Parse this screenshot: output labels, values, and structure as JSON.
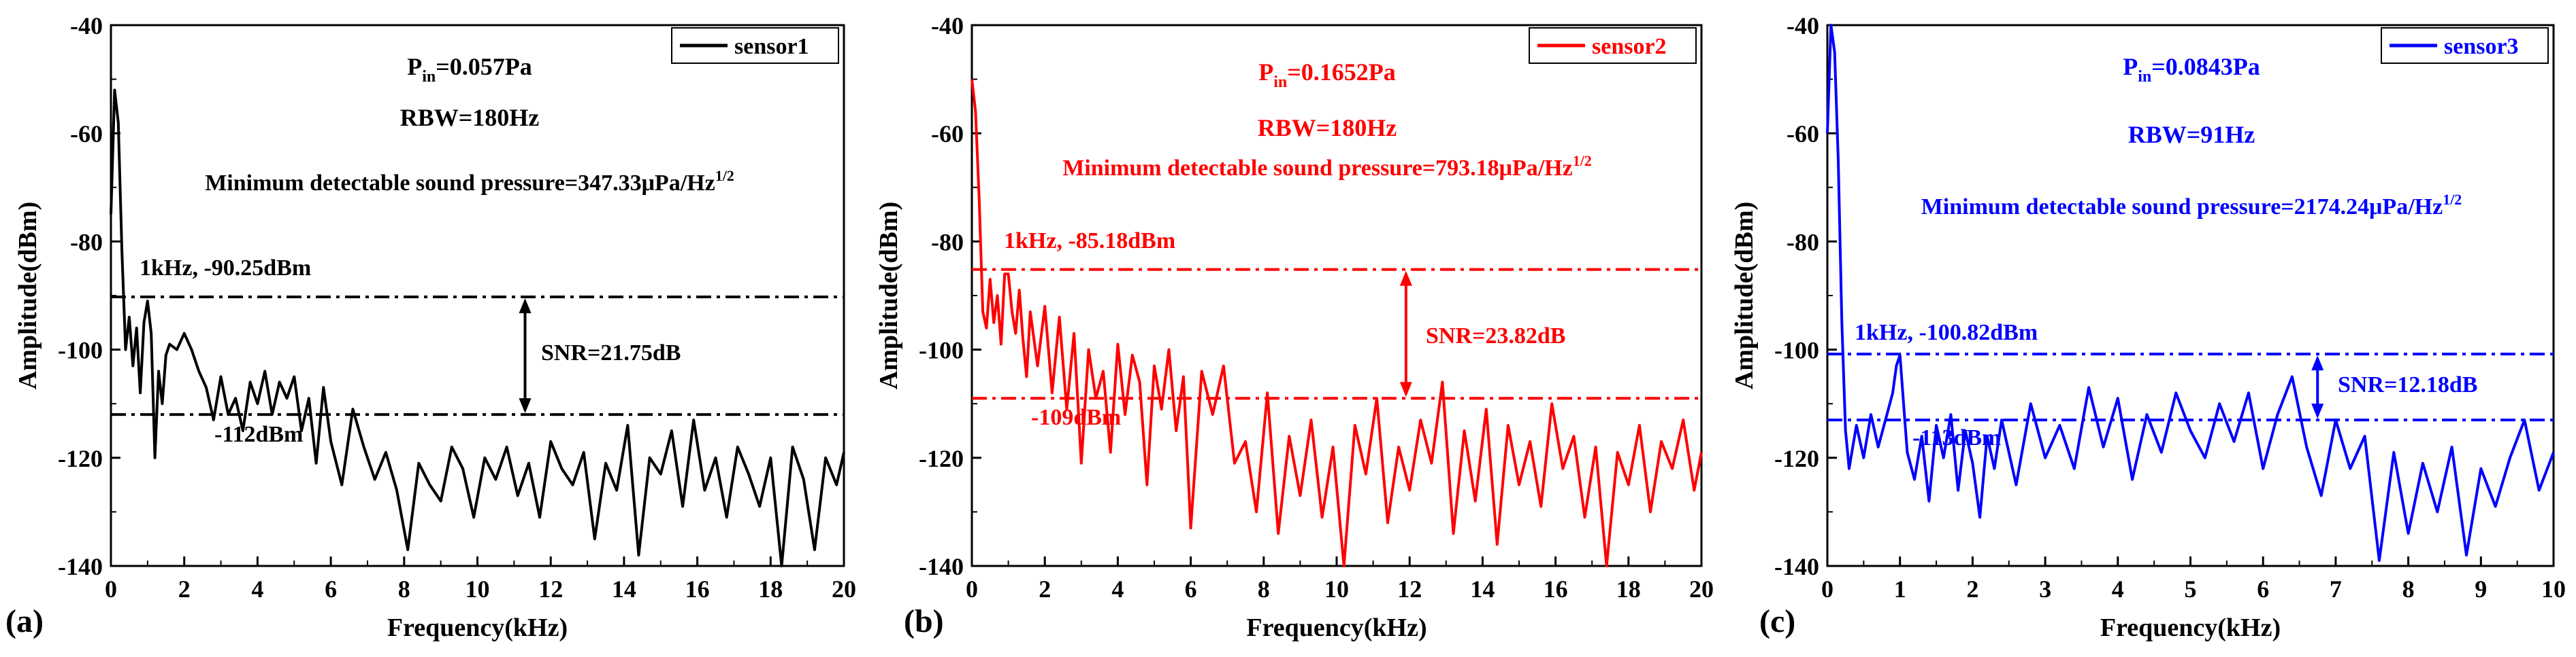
{
  "chart_data": [
    {
      "type": "line",
      "panel_label": "(a)",
      "xlabel": "Frequency(kHz)",
      "ylabel": "Amplitude(dBm)",
      "xlim": [
        0,
        20
      ],
      "ylim": [
        -140,
        -40
      ],
      "xticks": [
        "0",
        "2",
        "4",
        "6",
        "8",
        "10",
        "12",
        "14",
        "16",
        "18",
        "20"
      ],
      "yticks": [
        "-40",
        "-60",
        "-80",
        "-100",
        "-120",
        "-140"
      ],
      "color": "#000000",
      "legend": "sensor1",
      "annot_pin_main": "P",
      "annot_pin_sub": "in",
      "annot_pin_value": "=0.057Pa",
      "annot_rbw": "RBW=180Hz",
      "annot_mdsp_main": "Minimum detectable sound pressure=347.33μPa/Hz",
      "annot_mdsp_sup": "1/2",
      "signal_label": "1kHz, -90.25dBm",
      "noise_label": "-112dBm",
      "snr_label": "SNR=21.75dB",
      "signal_level": -90.25,
      "noise_level": -112,
      "snr_arrow_x": 11.3,
      "series": [
        {
          "name": "sensor1",
          "x": [
            0,
            0.1,
            0.2,
            0.3,
            0.4,
            0.5,
            0.6,
            0.7,
            0.8,
            0.9,
            1.0,
            1.1,
            1.2,
            1.3,
            1.4,
            1.5,
            1.6,
            1.8,
            2.0,
            2.2,
            2.4,
            2.6,
            2.8,
            3.0,
            3.2,
            3.4,
            3.6,
            3.8,
            4.0,
            4.2,
            4.4,
            4.6,
            4.8,
            5.0,
            5.2,
            5.4,
            5.6,
            5.8,
            6.0,
            6.3,
            6.6,
            6.9,
            7.2,
            7.5,
            7.8,
            8.1,
            8.4,
            8.7,
            9.0,
            9.3,
            9.6,
            9.9,
            10.2,
            10.5,
            10.8,
            11.1,
            11.4,
            11.7,
            12.0,
            12.3,
            12.6,
            12.9,
            13.2,
            13.5,
            13.8,
            14.1,
            14.4,
            14.7,
            15.0,
            15.3,
            15.6,
            15.9,
            16.2,
            16.5,
            16.8,
            17.1,
            17.4,
            17.7,
            18.0,
            18.3,
            18.6,
            18.9,
            19.2,
            19.5,
            19.8,
            20.0
          ],
          "y": [
            -75,
            -52,
            -58,
            -82,
            -100,
            -94,
            -103,
            -96,
            -108,
            -95,
            -91,
            -97,
            -120,
            -104,
            -110,
            -101,
            -99,
            -100,
            -97,
            -100,
            -104,
            -107,
            -113,
            -105,
            -112,
            -109,
            -115,
            -106,
            -110,
            -104,
            -112,
            -106,
            -109,
            -105,
            -115,
            -109,
            -121,
            -107,
            -117,
            -125,
            -111,
            -118,
            -124,
            -119,
            -126,
            -137,
            -121,
            -125,
            -128,
            -118,
            -122,
            -131,
            -120,
            -124,
            -118,
            -127,
            -121,
            -131,
            -117,
            -122,
            -125,
            -119,
            -135,
            -121,
            -126,
            -114,
            -138,
            -120,
            -123,
            -115,
            -129,
            -113,
            -126,
            -120,
            -131,
            -118,
            -123,
            -129,
            -120,
            -142,
            -118,
            -124,
            -137,
            -120,
            -125,
            -119
          ]
        }
      ]
    },
    {
      "type": "line",
      "panel_label": "(b)",
      "xlabel": "Frequency(kHz)",
      "ylabel": "Amplitude(dBm)",
      "xlim": [
        0,
        20
      ],
      "ylim": [
        -140,
        -40
      ],
      "xticks": [
        "0",
        "2",
        "4",
        "6",
        "8",
        "10",
        "12",
        "14",
        "16",
        "18",
        "20"
      ],
      "yticks": [
        "-40",
        "-60",
        "-80",
        "-100",
        "-120",
        "-140"
      ],
      "color": "#ff0000",
      "legend": "sensor2",
      "annot_pin_main": "P",
      "annot_pin_sub": "in",
      "annot_pin_value": "=0.1652Pa",
      "annot_rbw": "RBW=180Hz",
      "annot_mdsp_main": "Minimum detectable sound pressure=793.18μPa/Hz",
      "annot_mdsp_sup": "1/2",
      "signal_label": "1kHz, -85.18dBm",
      "noise_label": "-109dBm",
      "snr_label": "SNR=23.82dB",
      "signal_level": -85.18,
      "noise_level": -109,
      "snr_arrow_x": 11.9,
      "series": [
        {
          "name": "sensor2",
          "x": [
            0,
            0.1,
            0.2,
            0.3,
            0.4,
            0.5,
            0.6,
            0.7,
            0.8,
            0.9,
            1.0,
            1.1,
            1.2,
            1.3,
            1.4,
            1.5,
            1.6,
            1.8,
            2.0,
            2.2,
            2.4,
            2.6,
            2.8,
            3.0,
            3.2,
            3.4,
            3.6,
            3.8,
            4.0,
            4.2,
            4.4,
            4.6,
            4.8,
            5.0,
            5.2,
            5.4,
            5.6,
            5.8,
            6.0,
            6.3,
            6.6,
            6.9,
            7.2,
            7.5,
            7.8,
            8.1,
            8.4,
            8.7,
            9.0,
            9.3,
            9.6,
            9.9,
            10.2,
            10.5,
            10.8,
            11.1,
            11.4,
            11.7,
            12.0,
            12.3,
            12.6,
            12.9,
            13.2,
            13.5,
            13.8,
            14.1,
            14.4,
            14.7,
            15.0,
            15.3,
            15.6,
            15.9,
            16.2,
            16.5,
            16.8,
            17.1,
            17.4,
            17.7,
            18.0,
            18.3,
            18.6,
            18.9,
            19.2,
            19.5,
            19.8,
            20.0
          ],
          "y": [
            -50,
            -56,
            -72,
            -93,
            -96,
            -87,
            -95,
            -90,
            -99,
            -86,
            -86,
            -93,
            -97,
            -89,
            -98,
            -105,
            -93,
            -103,
            -92,
            -108,
            -94,
            -111,
            -97,
            -121,
            -100,
            -109,
            -104,
            -119,
            -99,
            -112,
            -101,
            -106,
            -125,
            -103,
            -111,
            -100,
            -115,
            -105,
            -133,
            -104,
            -112,
            -103,
            -121,
            -117,
            -130,
            -108,
            -134,
            -116,
            -127,
            -113,
            -131,
            -118,
            -140,
            -114,
            -123,
            -109,
            -132,
            -118,
            -126,
            -113,
            -121,
            -106,
            -134,
            -115,
            -128,
            -111,
            -136,
            -114,
            -125,
            -117,
            -129,
            -110,
            -122,
            -116,
            -131,
            -118,
            -140,
            -119,
            -125,
            -114,
            -130,
            -117,
            -122,
            -113,
            -126,
            -119
          ]
        }
      ]
    },
    {
      "type": "line",
      "panel_label": "(c)",
      "xlabel": "Frequency(kHz)",
      "ylabel": "Amplitude(dBm)",
      "xlim": [
        0,
        10
      ],
      "ylim": [
        -140,
        -40
      ],
      "xticks": [
        "0",
        "1",
        "2",
        "3",
        "4",
        "5",
        "6",
        "7",
        "8",
        "9",
        "10"
      ],
      "yticks": [
        "-40",
        "-60",
        "-80",
        "-100",
        "-120",
        "-140"
      ],
      "color": "#0000ff",
      "legend": "sensor3",
      "annot_pin_main": "P",
      "annot_pin_sub": "in",
      "annot_pin_value": "=0.0843Pa",
      "annot_rbw": "RBW=91Hz",
      "annot_mdsp_main": "Minimum detectable sound pressure=2174.24μPa/Hz",
      "annot_mdsp_sup": "1/2",
      "signal_label": "1kHz, -100.82dBm",
      "noise_label": "-113dBm",
      "snr_label": "SNR=12.18dB",
      "signal_level": -100.82,
      "noise_level": -113,
      "snr_arrow_x": 6.75,
      "series": [
        {
          "name": "sensor3",
          "x": [
            0,
            0.05,
            0.1,
            0.15,
            0.2,
            0.25,
            0.3,
            0.35,
            0.4,
            0.5,
            0.6,
            0.7,
            0.8,
            0.9,
            0.95,
            1.0,
            1.05,
            1.1,
            1.2,
            1.3,
            1.4,
            1.5,
            1.6,
            1.7,
            1.8,
            1.9,
            2.0,
            2.1,
            2.2,
            2.3,
            2.4,
            2.6,
            2.8,
            3.0,
            3.2,
            3.4,
            3.6,
            3.8,
            4.0,
            4.2,
            4.4,
            4.6,
            4.8,
            5.0,
            5.2,
            5.4,
            5.6,
            5.8,
            6.0,
            6.2,
            6.4,
            6.6,
            6.8,
            7.0,
            7.2,
            7.4,
            7.6,
            7.8,
            8.0,
            8.2,
            8.4,
            8.6,
            8.8,
            9.0,
            9.2,
            9.4,
            9.6,
            9.8,
            10.0
          ],
          "y": [
            -60,
            -40,
            -45,
            -65,
            -95,
            -115,
            -122,
            -118,
            -114,
            -120,
            -112,
            -118,
            -113,
            -108,
            -103,
            -101,
            -110,
            -119,
            -124,
            -116,
            -128,
            -114,
            -120,
            -112,
            -126,
            -115,
            -121,
            -131,
            -116,
            -122,
            -113,
            -125,
            -110,
            -120,
            -114,
            -122,
            -107,
            -118,
            -109,
            -124,
            -112,
            -119,
            -108,
            -115,
            -120,
            -110,
            -117,
            -108,
            -122,
            -112,
            -105,
            -118,
            -127,
            -113,
            -122,
            -116,
            -139,
            -119,
            -134,
            -121,
            -130,
            -118,
            -138,
            -122,
            -129,
            -120,
            -113,
            -126,
            -119
          ]
        }
      ]
    }
  ]
}
